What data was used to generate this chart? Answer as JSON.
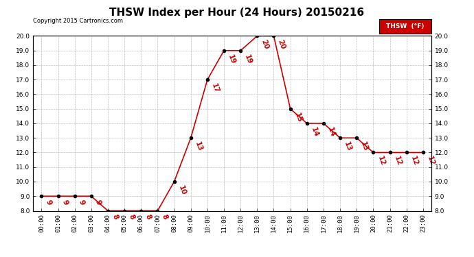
{
  "title": "THSW Index per Hour (24 Hours) 20150216",
  "copyright": "Copyright 2015 Cartronics.com",
  "legend_label": "THSW  (°F)",
  "hours": [
    0,
    1,
    2,
    3,
    4,
    5,
    6,
    7,
    8,
    9,
    10,
    11,
    12,
    13,
    14,
    15,
    16,
    17,
    18,
    19,
    20,
    21,
    22,
    23
  ],
  "values": [
    9,
    9,
    9,
    9,
    8,
    8,
    8,
    8,
    10,
    13,
    17,
    19,
    19,
    20,
    20,
    15,
    14,
    14,
    13,
    13,
    12,
    12,
    12,
    12
  ],
  "xlabels": [
    "00:00",
    "01:00",
    "02:00",
    "03:00",
    "04:00",
    "05:00",
    "06:00",
    "07:00",
    "08:00",
    "09:00",
    "10:00",
    "11:00",
    "12:00",
    "13:00",
    "14:00",
    "15:00",
    "16:00",
    "17:00",
    "18:00",
    "19:00",
    "20:00",
    "21:00",
    "22:00",
    "23:00"
  ],
  "ylim": [
    8.0,
    20.0
  ],
  "yticks": [
    8.0,
    9.0,
    10.0,
    11.0,
    12.0,
    13.0,
    14.0,
    15.0,
    16.0,
    17.0,
    18.0,
    19.0,
    20.0
  ],
  "line_color": "#cc0000",
  "marker_color": "#000000",
  "label_color": "#cc0000",
  "bg_color": "#ffffff",
  "grid_color": "#b0b0b0",
  "legend_bg": "#cc0000",
  "legend_text_color": "#ffffff",
  "title_fontsize": 11,
  "tick_fontsize": 6.5,
  "annotation_fontsize": 7.5
}
